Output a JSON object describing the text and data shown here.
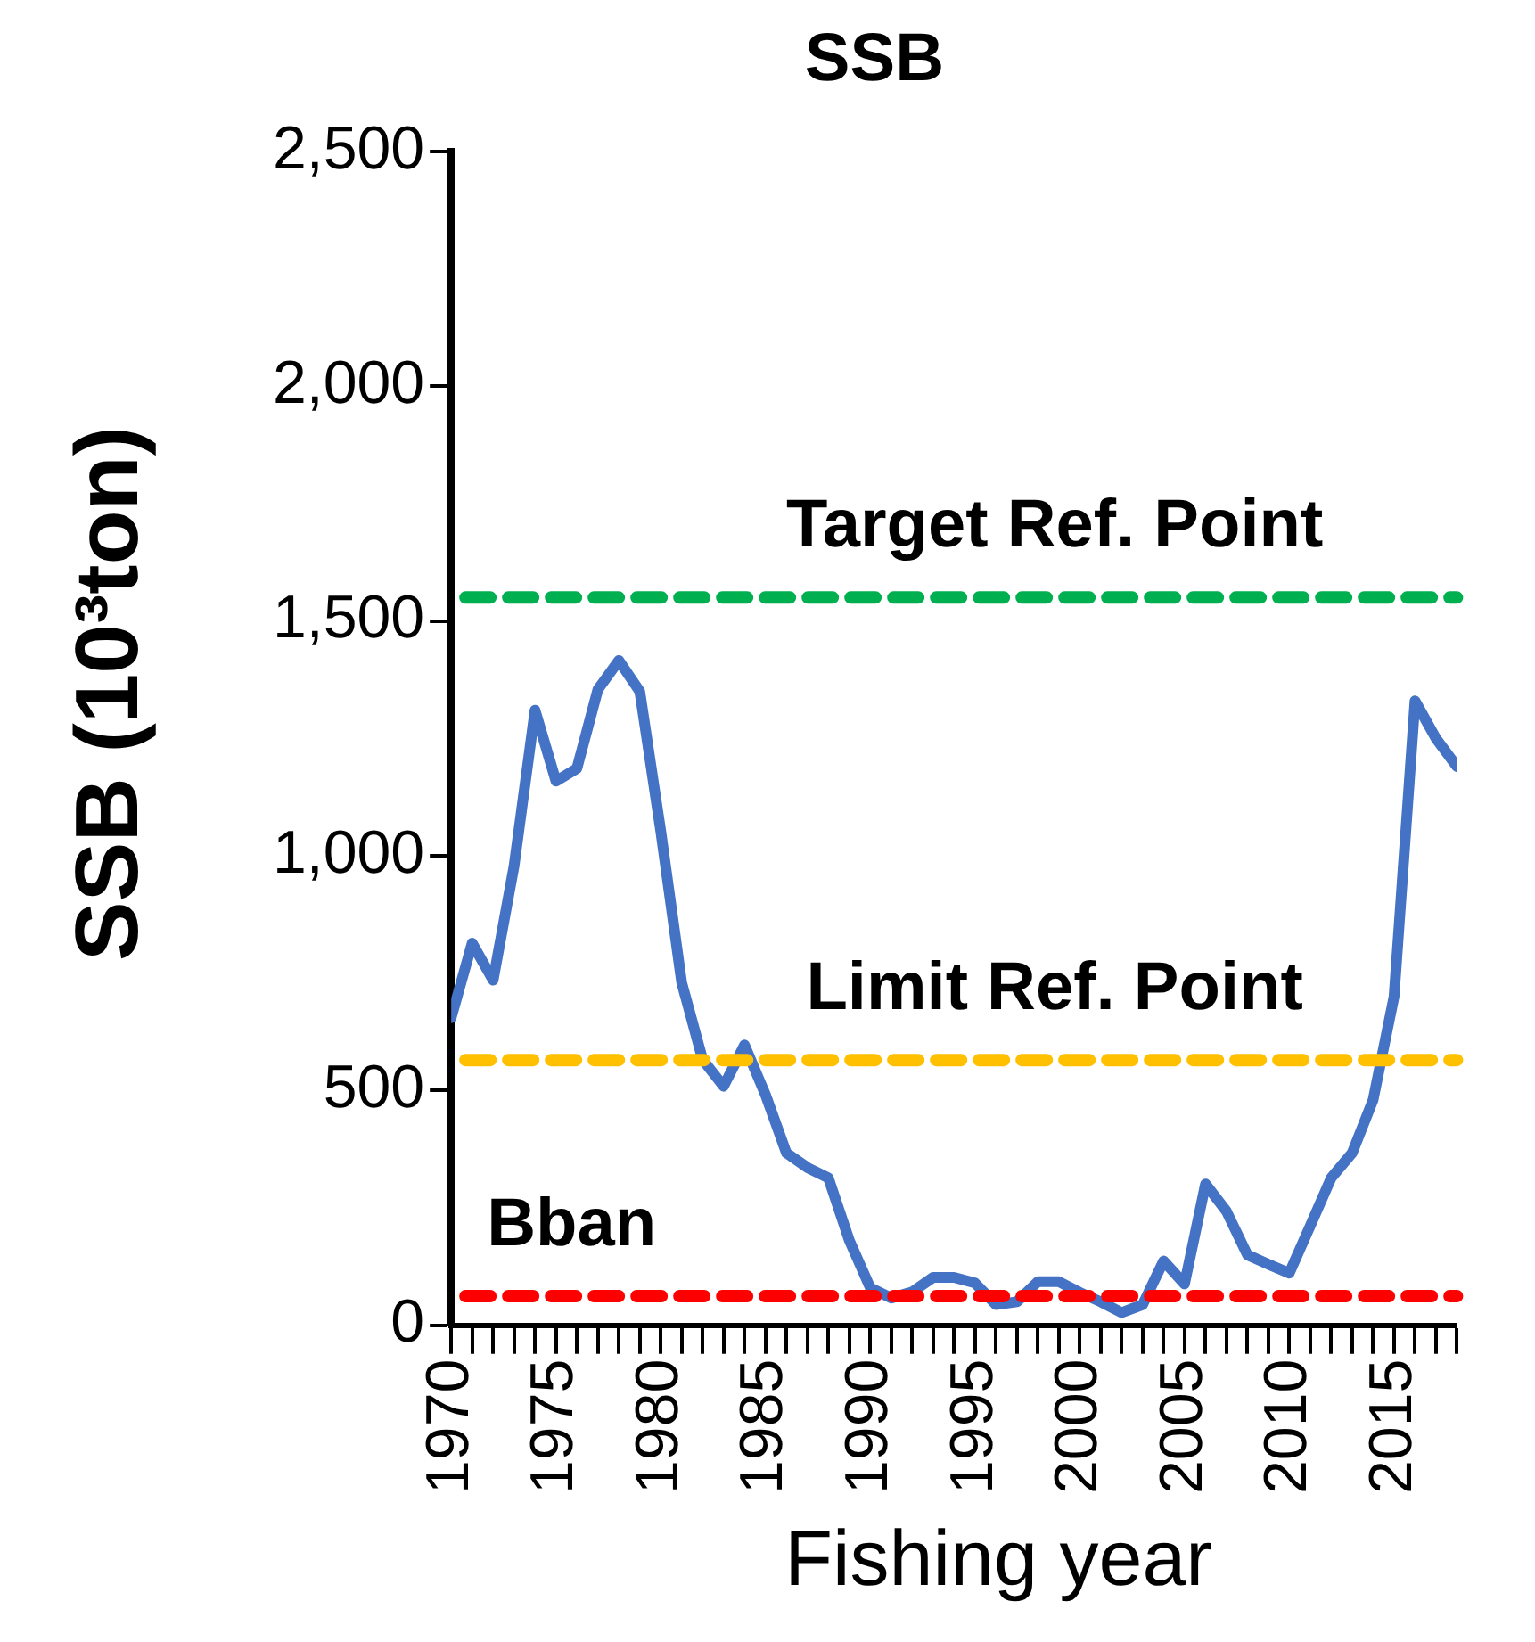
{
  "chart_data": {
    "type": "line",
    "title": "SSB",
    "xlabel": "Fishing year",
    "ylabel": "SSB (10³ton)",
    "x": [
      1970,
      1971,
      1972,
      1973,
      1974,
      1975,
      1976,
      1977,
      1978,
      1979,
      1980,
      1981,
      1982,
      1983,
      1984,
      1985,
      1986,
      1987,
      1988,
      1989,
      1990,
      1991,
      1992,
      1993,
      1994,
      1995,
      1996,
      1997,
      1998,
      1999,
      2000,
      2001,
      2002,
      2003,
      2004,
      2005,
      2006,
      2007,
      2008,
      2009,
      2010,
      2011,
      2012,
      2013,
      2014,
      2015,
      2016,
      2017,
      2018
    ],
    "series": [
      {
        "color": "#4472c4",
        "values": [
          655,
          814,
          735,
          978,
          1310,
          1159,
          1186,
          1354,
          1416,
          1350,
          1053,
          730,
          566,
          509,
          597,
          491,
          367,
          336,
          314,
          181,
          80,
          58,
          71,
          102,
          102,
          90,
          44,
          50,
          93,
          93,
          70,
          50,
          27,
          44,
          137,
          88,
          301,
          243,
          150,
          130,
          111,
          212,
          314,
          367,
          480,
          700,
          1330,
          1250,
          1190
        ]
      }
    ],
    "xlim": [
      1970,
      2018
    ],
    "xticks": [
      1970,
      {
        "value": 1971,
        "label": null
      },
      {
        "value": 1972,
        "label": null
      },
      {
        "value": 1973,
        "label": null
      },
      {
        "value": 1974,
        "label": null
      },
      1975,
      {
        "value": 1976,
        "label": null
      },
      {
        "value": 1977,
        "label": null
      },
      {
        "value": 1978,
        "label": null
      },
      {
        "value": 1979,
        "label": null
      },
      1980,
      {
        "value": 1981,
        "label": null
      },
      {
        "value": 1982,
        "label": null
      },
      {
        "value": 1983,
        "label": null
      },
      {
        "value": 1984,
        "label": null
      },
      1985,
      {
        "value": 1986,
        "label": null
      },
      {
        "value": 1987,
        "label": null
      },
      {
        "value": 1988,
        "label": null
      },
      {
        "value": 1989,
        "label": null
      },
      1990,
      {
        "value": 1991,
        "label": null
      },
      {
        "value": 1992,
        "label": null
      },
      {
        "value": 1993,
        "label": null
      },
      {
        "value": 1994,
        "label": null
      },
      1995,
      {
        "value": 1996,
        "label": null
      },
      {
        "value": 1997,
        "label": null
      },
      {
        "value": 1998,
        "label": null
      },
      {
        "value": 1999,
        "label": null
      },
      2000,
      {
        "value": 2001,
        "label": null
      },
      {
        "value": 2002,
        "label": null
      },
      {
        "value": 2003,
        "label": null
      },
      {
        "value": 2004,
        "label": null
      },
      2005,
      {
        "value": 2006,
        "label": null
      },
      {
        "value": 2007,
        "label": null
      },
      {
        "value": 2008,
        "label": null
      },
      {
        "value": 2009,
        "label": null
      },
      2010,
      {
        "value": 2011,
        "label": null
      },
      {
        "value": 2012,
        "label": null
      },
      {
        "value": 2013,
        "label": null
      },
      {
        "value": 2014,
        "label": null
      },
      2015,
      {
        "value": 2016,
        "label": null
      },
      {
        "value": 2017,
        "label": null
      },
      {
        "value": 2018,
        "label": null
      }
    ],
    "ylim": [
      0,
      2500
    ],
    "yticks": [
      0,
      500,
      {
        "value": 1000,
        "label": "1,000"
      },
      {
        "value": 1500,
        "label": "1,500"
      },
      {
        "value": 2000,
        "label": "2,000"
      },
      {
        "value": 2500,
        "label": "2,500"
      }
    ],
    "ref_lines": [
      {
        "axis": "y",
        "value": 1550,
        "label": "Target Ref. Point",
        "color": "#00b050",
        "line_style": "dashed"
      },
      {
        "axis": "y",
        "value": 565,
        "label": "Limit Ref. Point",
        "color": "#ffc000",
        "line_style": "dashed"
      },
      {
        "axis": "y",
        "value": 62,
        "label": "Bban",
        "color": "#ff0000",
        "line_style": "dashed"
      }
    ],
    "grid": false,
    "legend": false,
    "marker": "none",
    "line_style": "solid"
  }
}
